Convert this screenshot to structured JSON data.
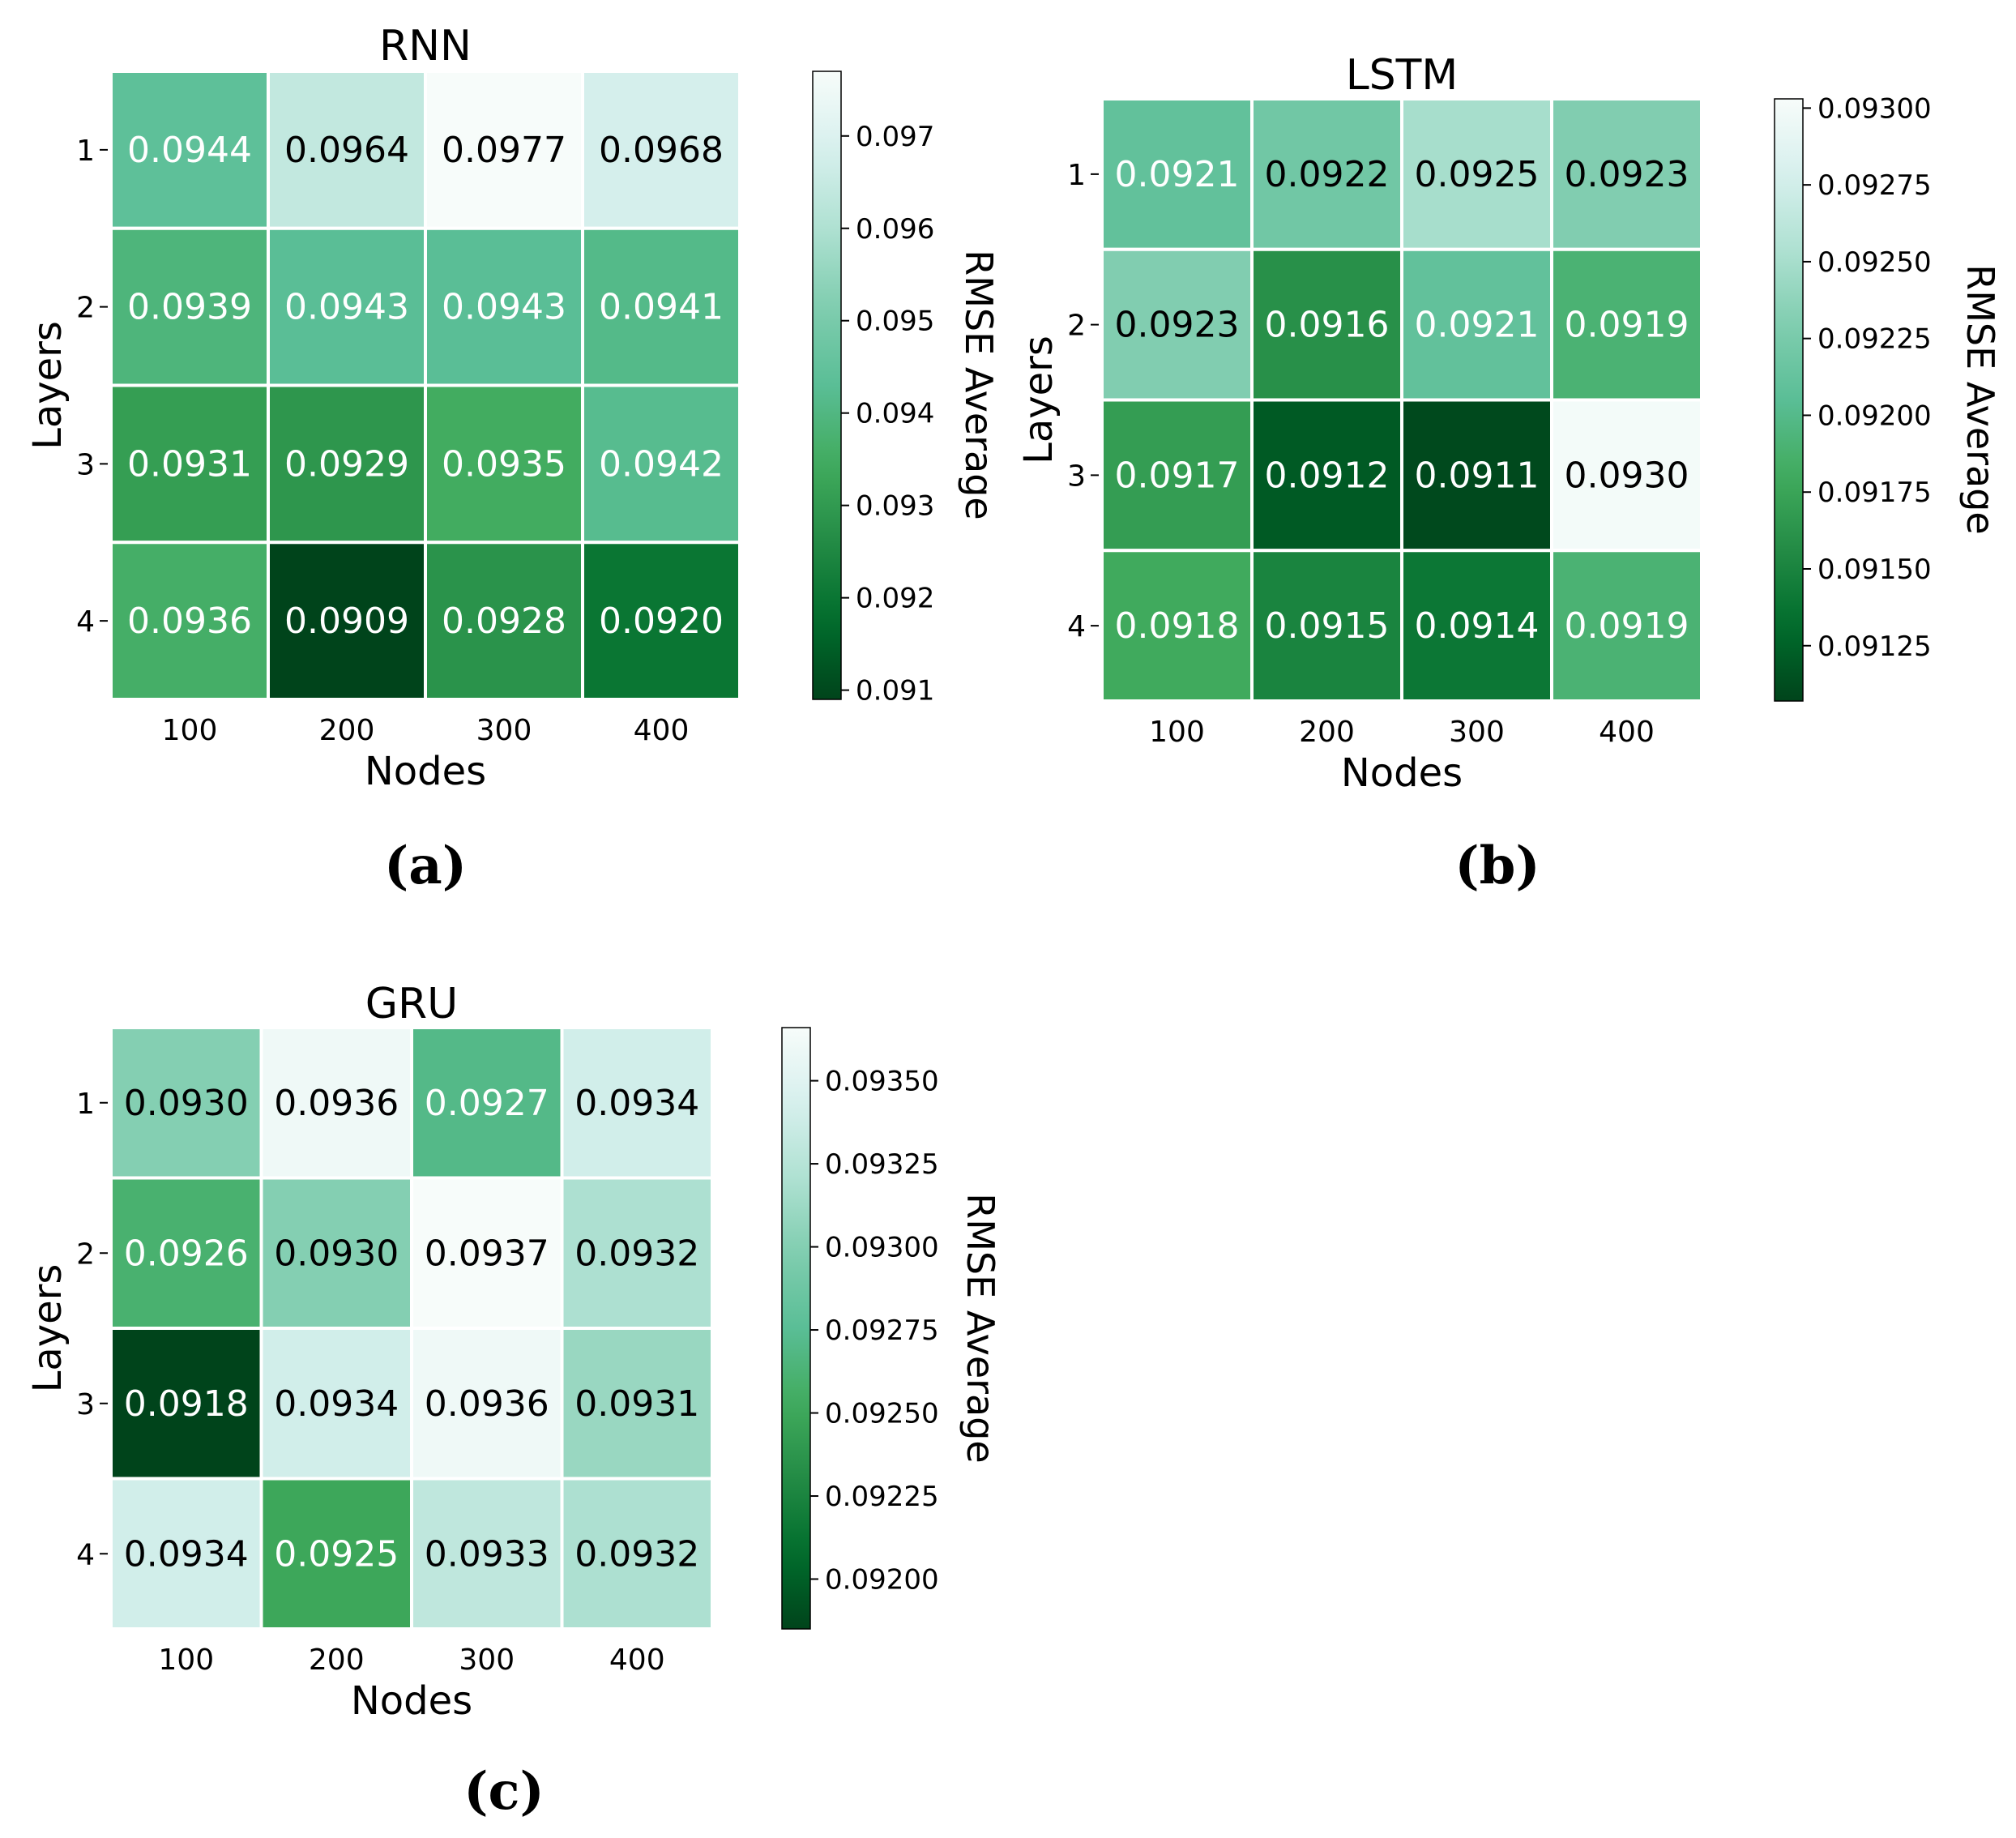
{
  "chart_data": [
    {
      "type": "heatmap",
      "title": "RNN",
      "panel_label": "(a)",
      "xlabel": "Nodes",
      "ylabel": "Layers",
      "colorbar_label": "RMSE Average",
      "x_categories": [
        "100",
        "200",
        "300",
        "400"
      ],
      "y_categories": [
        "1",
        "2",
        "3",
        "4"
      ],
      "values": [
        [
          0.0944,
          0.0964,
          0.0977,
          0.0968
        ],
        [
          0.0939,
          0.0943,
          0.0943,
          0.0941
        ],
        [
          0.0931,
          0.0929,
          0.0935,
          0.0942
        ],
        [
          0.0936,
          0.0909,
          0.0928,
          0.092
        ]
      ],
      "cell_labels": [
        [
          "0.0944",
          "0.0964",
          "0.0977",
          "0.0968"
        ],
        [
          "0.0939",
          "0.0943",
          "0.0943",
          "0.0941"
        ],
        [
          "0.0931",
          "0.0929",
          "0.0935",
          "0.0942"
        ],
        [
          "0.0936",
          "0.0909",
          "0.0928",
          "0.0920"
        ]
      ],
      "colorbar_range": [
        0.0909,
        0.0977
      ],
      "colorbar_ticks": [
        0.091,
        0.092,
        0.093,
        0.094,
        0.095,
        0.096,
        0.097
      ],
      "colorbar_tick_labels": [
        "0.091",
        "0.092",
        "0.093",
        "0.094",
        "0.095",
        "0.096",
        "0.097"
      ],
      "colormap": "Greens (reversed)"
    },
    {
      "type": "heatmap",
      "title": "LSTM",
      "panel_label": "(b)",
      "xlabel": "Nodes",
      "ylabel": "Layers",
      "colorbar_label": "RMSE Average",
      "x_categories": [
        "100",
        "200",
        "300",
        "400"
      ],
      "y_categories": [
        "1",
        "2",
        "3",
        "4"
      ],
      "values": [
        [
          0.0921,
          0.0922,
          0.0925,
          0.0923
        ],
        [
          0.0923,
          0.0916,
          0.0921,
          0.0919
        ],
        [
          0.0917,
          0.0912,
          0.0911,
          0.093
        ],
        [
          0.0918,
          0.0915,
          0.0914,
          0.0919
        ]
      ],
      "cell_labels": [
        [
          "0.0921",
          "0.0922",
          "0.0925",
          "0.0923"
        ],
        [
          "0.0923",
          "0.0916",
          "0.0921",
          "0.0919"
        ],
        [
          "0.0917",
          "0.0912",
          "0.0911",
          "0.0930"
        ],
        [
          "0.0918",
          "0.0915",
          "0.0914",
          "0.0919"
        ]
      ],
      "colorbar_range": [
        0.09107,
        0.09303
      ],
      "colorbar_ticks": [
        0.09125,
        0.0915,
        0.09175,
        0.092,
        0.09225,
        0.0925,
        0.09275,
        0.093
      ],
      "colorbar_tick_labels": [
        "0.09125",
        "0.09150",
        "0.09175",
        "0.09200",
        "0.09225",
        "0.09250",
        "0.09275",
        "0.09300"
      ],
      "colormap": "Greens (reversed)"
    },
    {
      "type": "heatmap",
      "title": "GRU",
      "panel_label": "(c)",
      "xlabel": "Nodes",
      "ylabel": "Layers",
      "colorbar_label": "RMSE Average",
      "x_categories": [
        "100",
        "200",
        "300",
        "400"
      ],
      "y_categories": [
        "1",
        "2",
        "3",
        "4"
      ],
      "values": [
        [
          0.093,
          0.0936,
          0.0927,
          0.0934
        ],
        [
          0.0926,
          0.093,
          0.0937,
          0.0932
        ],
        [
          0.0918,
          0.0934,
          0.0936,
          0.0931
        ],
        [
          0.0934,
          0.0925,
          0.0933,
          0.0932
        ]
      ],
      "cell_labels": [
        [
          "0.0930",
          "0.0936",
          "0.0927",
          "0.0934"
        ],
        [
          "0.0926",
          "0.0930",
          "0.0937",
          "0.0932"
        ],
        [
          "0.0918",
          "0.0934",
          "0.0936",
          "0.0931"
        ],
        [
          "0.0934",
          "0.0925",
          "0.0933",
          "0.0932"
        ]
      ],
      "colorbar_range": [
        0.09185,
        0.09366
      ],
      "colorbar_ticks": [
        0.092,
        0.09225,
        0.0925,
        0.09275,
        0.093,
        0.09325,
        0.0935
      ],
      "colorbar_tick_labels": [
        "0.09200",
        "0.09225",
        "0.09250",
        "0.09275",
        "0.09300",
        "0.09325",
        "0.09350"
      ],
      "colormap": "Greens (reversed)"
    }
  ]
}
